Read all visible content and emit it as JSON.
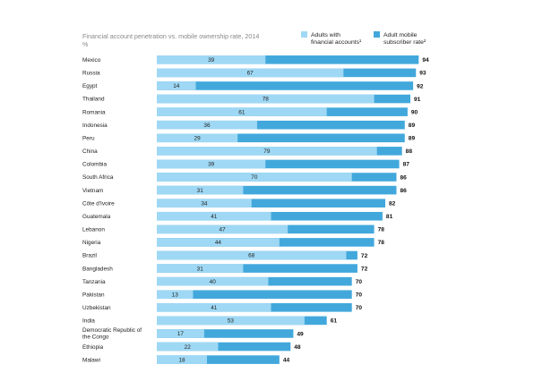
{
  "chart_data": {
    "type": "bar",
    "title": "Financial account penetration vs. mobile ownership rate, 2014",
    "unit": "%",
    "legend_position": "top-right",
    "xlim": [
      0,
      100
    ],
    "series": [
      {
        "name": "Adults with financial accounts¹",
        "color": "#9fd8f4"
      },
      {
        "name": "Adult mobile subscriber rate²",
        "color": "#42a8dc"
      }
    ],
    "categories": [
      "Mexico",
      "Russia",
      "Egypt",
      "Thailand",
      "Romania",
      "Indonesia",
      "Peru",
      "China",
      "Colombia",
      "South Africa",
      "Vietnam",
      "Côte d'Ivoire",
      "Guatemala",
      "Lebanon",
      "Nigeria",
      "Brazil",
      "Bangladesh",
      "Tanzania",
      "Pakistan",
      "Uzbekistan",
      "India",
      "Democratic Republic of the Congo",
      "Ethiopia",
      "Malawi"
    ],
    "financial_accounts": [
      39,
      67,
      14,
      78,
      61,
      36,
      29,
      79,
      39,
      70,
      31,
      34,
      41,
      47,
      44,
      68,
      31,
      40,
      13,
      41,
      53,
      17,
      22,
      18
    ],
    "mobile_subscribers": [
      94,
      93,
      92,
      91,
      90,
      89,
      89,
      88,
      87,
      86,
      86,
      82,
      81,
      78,
      78,
      72,
      72,
      70,
      70,
      70,
      61,
      49,
      48,
      44
    ]
  }
}
